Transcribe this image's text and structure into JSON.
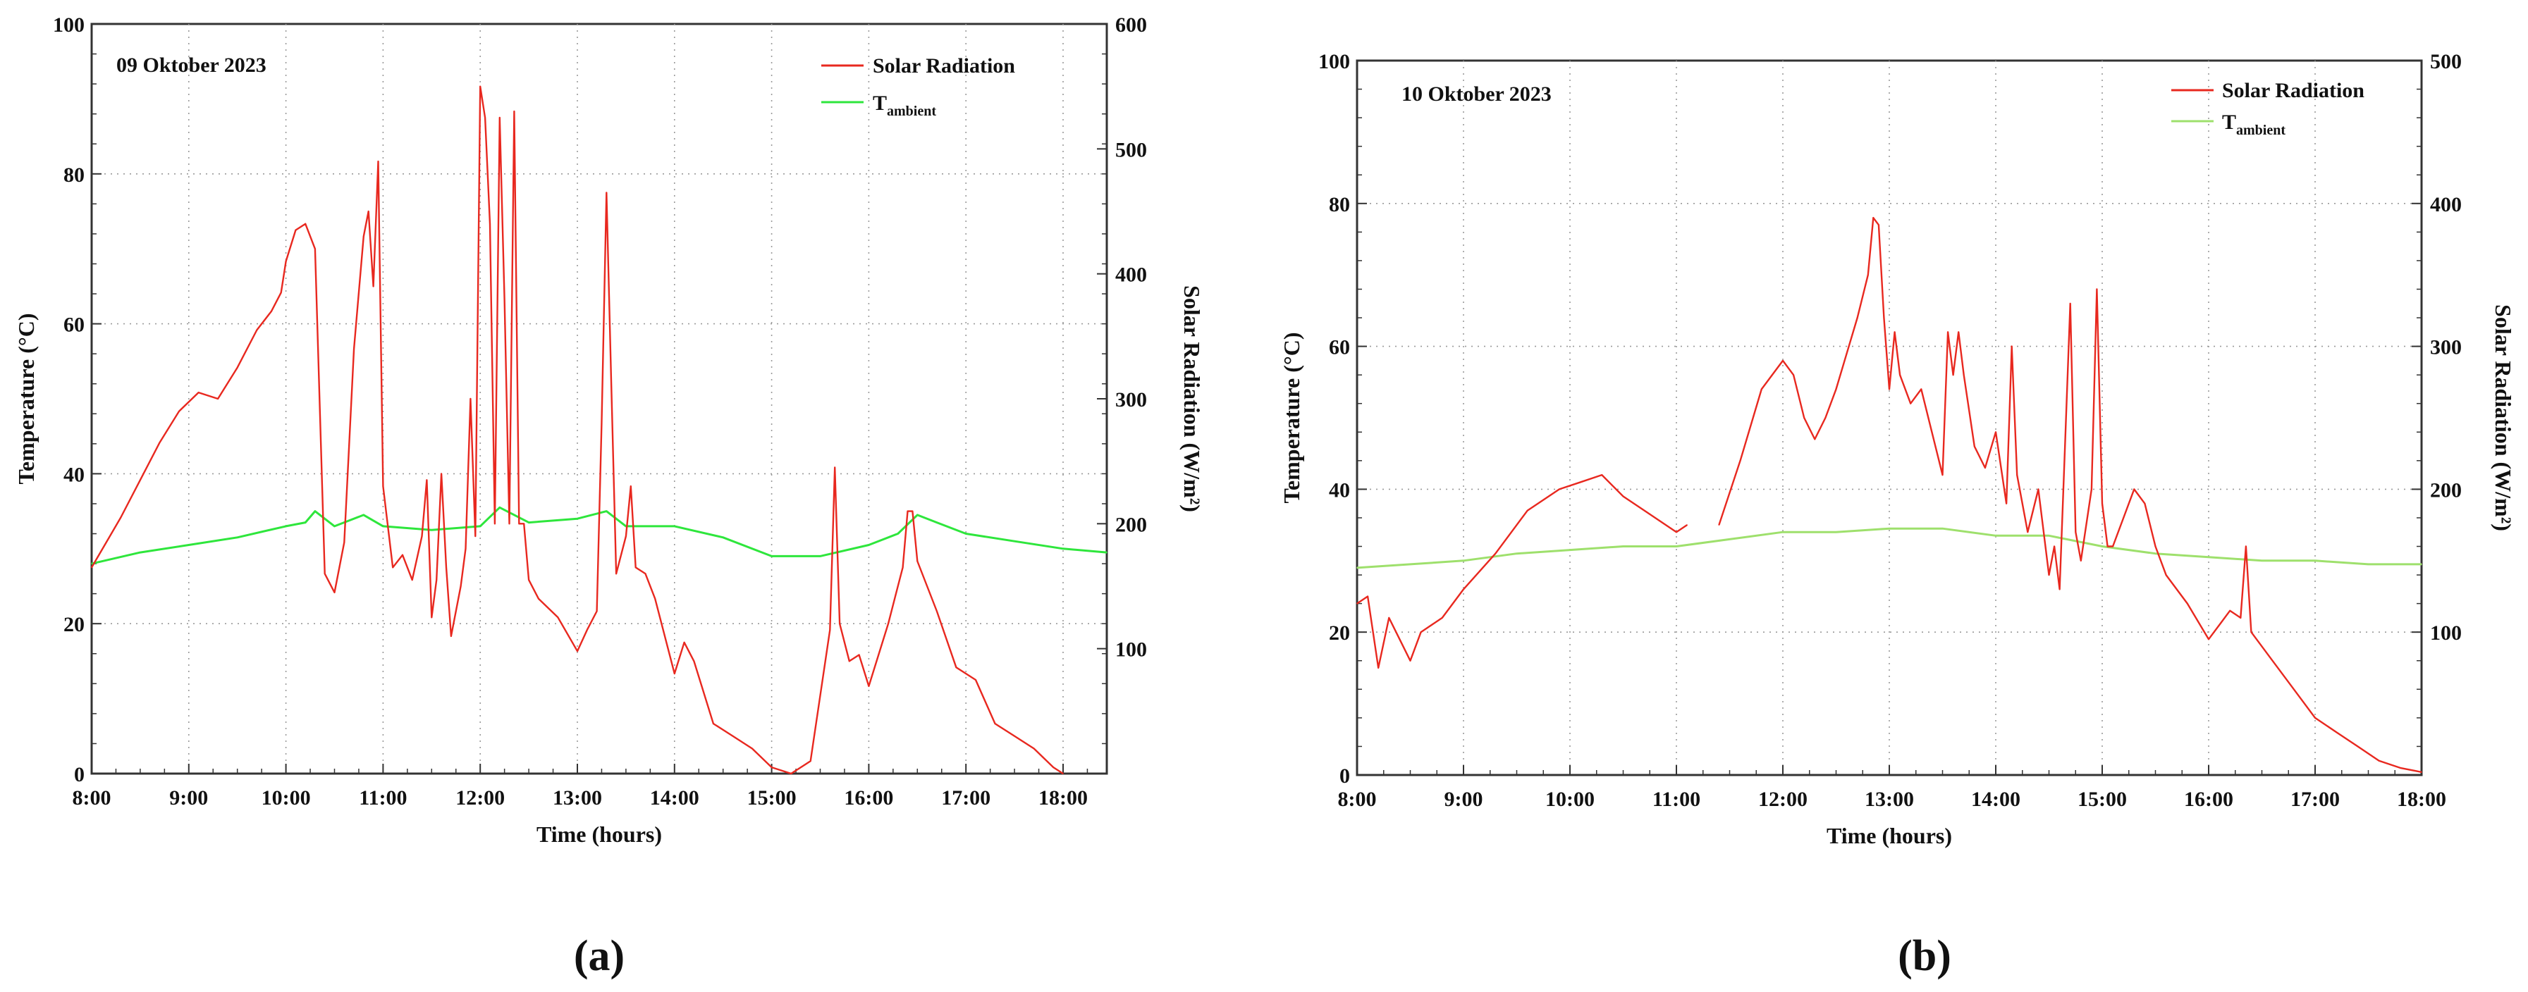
{
  "chart_data": [
    {
      "type": "line",
      "panel_label": "(a)",
      "annotation": "09 Oktober 2023",
      "xlabel": "Time (hours)",
      "ylabel_left": "Temperature (°C)",
      "ylabel_right": "Solar Radiation (W/m²)",
      "x_unit": "hours",
      "xlim": [
        8.0,
        18.45
      ],
      "ylim_left": [
        0,
        100
      ],
      "ylim_right": [
        0,
        600
      ],
      "x_ticks": [
        8,
        9,
        10,
        11,
        12,
        13,
        14,
        15,
        16,
        17,
        18
      ],
      "x_tick_labels": [
        "8:00",
        "9:00",
        "10:00",
        "11:00",
        "12:00",
        "13:00",
        "14:00",
        "15:00",
        "16:00",
        "17:00",
        "18:00"
      ],
      "y_left_ticks": [
        0,
        20,
        40,
        60,
        80,
        100
      ],
      "y_right_ticks": [
        100,
        200,
        300,
        400,
        500,
        600
      ],
      "legend_position": "top-right",
      "series": [
        {
          "name": "Solar Radiation",
          "axis": "right",
          "color": "#e8281f",
          "x": [
            8.0,
            8.15,
            8.3,
            8.5,
            8.7,
            8.9,
            9.1,
            9.3,
            9.5,
            9.7,
            9.85,
            9.95,
            10.0,
            10.1,
            10.2,
            10.3,
            10.4,
            10.5,
            10.6,
            10.7,
            10.8,
            10.85,
            10.9,
            10.95,
            11.0,
            11.1,
            11.2,
            11.3,
            11.4,
            11.45,
            11.5,
            11.55,
            11.6,
            11.65,
            11.7,
            11.8,
            11.85,
            11.9,
            11.95,
            12.0,
            12.05,
            12.1,
            12.15,
            12.2,
            12.25,
            12.3,
            12.35,
            12.4,
            12.45,
            12.5,
            12.6,
            12.8,
            13.0,
            13.1,
            13.2,
            13.25,
            13.3,
            13.35,
            13.4,
            13.5,
            13.55,
            13.6,
            13.7,
            13.8,
            14.0,
            14.1,
            14.2,
            14.4,
            14.6,
            14.8,
            15.0,
            15.2,
            15.4,
            15.6,
            15.65,
            15.7,
            15.8,
            15.9,
            16.0,
            16.2,
            16.3,
            16.35,
            16.4,
            16.45,
            16.5,
            16.7,
            16.9,
            17.1,
            17.3,
            17.5,
            17.7,
            17.9,
            18.0
          ],
          "values": [
            165,
            185,
            205,
            235,
            265,
            290,
            305,
            300,
            325,
            355,
            370,
            385,
            410,
            435,
            440,
            420,
            160,
            145,
            185,
            340,
            430,
            450,
            390,
            490,
            230,
            165,
            175,
            155,
            190,
            235,
            125,
            155,
            240,
            165,
            110,
            150,
            180,
            300,
            190,
            550,
            525,
            440,
            200,
            525,
            380,
            200,
            530,
            200,
            200,
            155,
            140,
            125,
            98,
            115,
            130,
            280,
            465,
            310,
            160,
            190,
            230,
            165,
            160,
            140,
            80,
            105,
            90,
            40,
            30,
            20,
            5,
            0,
            10,
            115,
            245,
            120,
            90,
            95,
            70,
            120,
            150,
            165,
            210,
            210,
            170,
            130,
            85,
            75,
            40,
            30,
            20,
            5,
            0
          ]
        },
        {
          "name": "Tambient",
          "axis": "left",
          "color": "#2ee63c",
          "x": [
            8.0,
            8.5,
            9.0,
            9.5,
            10.0,
            10.2,
            10.3,
            10.5,
            10.8,
            11.0,
            11.5,
            12.0,
            12.2,
            12.5,
            13.0,
            13.3,
            13.5,
            14.0,
            14.5,
            15.0,
            15.5,
            16.0,
            16.3,
            16.5,
            16.7,
            17.0,
            17.5,
            18.0,
            18.45
          ],
          "values": [
            28,
            29.5,
            30.5,
            31.5,
            33,
            33.5,
            35,
            33,
            34.5,
            33,
            32.5,
            33,
            35.5,
            33.5,
            34,
            35,
            33,
            33,
            31.5,
            29,
            29,
            30.5,
            32,
            34.5,
            33.5,
            32,
            31,
            30,
            29.5
          ]
        }
      ]
    },
    {
      "type": "line",
      "panel_label": "(b)",
      "annotation": "10 Oktober 2023",
      "xlabel": "Time (hours)",
      "ylabel_left": "Temperature (°C)",
      "ylabel_right": "Solar Radiation (W/m²)",
      "x_unit": "hours",
      "xlim": [
        8.0,
        18.0
      ],
      "ylim_left": [
        0,
        100
      ],
      "ylim_right": [
        0,
        500
      ],
      "x_ticks": [
        8,
        9,
        10,
        11,
        12,
        13,
        14,
        15,
        16,
        17,
        18
      ],
      "x_tick_labels": [
        "8:00",
        "9:00",
        "10:00",
        "11:00",
        "12:00",
        "13:00",
        "14:00",
        "15:00",
        "16:00",
        "17:00",
        "18:00"
      ],
      "y_left_ticks": [
        0,
        20,
        40,
        60,
        80,
        100
      ],
      "y_right_ticks": [
        100,
        200,
        300,
        400,
        500
      ],
      "legend_position": "top-right",
      "series": [
        {
          "name": "Solar Radiation",
          "axis": "right",
          "color": "#e8281f",
          "x": [
            8.0,
            8.1,
            8.2,
            8.3,
            8.4,
            8.5,
            8.6,
            8.8,
            9.0,
            9.3,
            9.6,
            9.9,
            10.1,
            10.3,
            10.5,
            10.7,
            11.0,
            11.1,
            11.2,
            11.4,
            11.6,
            11.8,
            12.0,
            12.1,
            12.2,
            12.3,
            12.4,
            12.5,
            12.6,
            12.7,
            12.8,
            12.85,
            12.9,
            12.95,
            13.0,
            13.05,
            13.1,
            13.2,
            13.3,
            13.4,
            13.5,
            13.55,
            13.6,
            13.65,
            13.7,
            13.8,
            13.9,
            14.0,
            14.1,
            14.15,
            14.2,
            14.3,
            14.4,
            14.5,
            14.55,
            14.6,
            14.65,
            14.7,
            14.75,
            14.8,
            14.9,
            14.95,
            15.0,
            15.05,
            15.1,
            15.2,
            15.3,
            15.4,
            15.5,
            15.6,
            15.8,
            16.0,
            16.1,
            16.2,
            16.3,
            16.35,
            16.4,
            16.6,
            16.8,
            17.0,
            17.2,
            17.4,
            17.6,
            17.8,
            18.0
          ],
          "values": [
            120,
            125,
            75,
            110,
            95,
            80,
            100,
            110,
            130,
            155,
            185,
            200,
            205,
            210,
            195,
            185,
            170,
            175,
            null,
            175,
            220,
            270,
            290,
            280,
            250,
            235,
            250,
            270,
            295,
            320,
            350,
            390,
            385,
            320,
            270,
            310,
            280,
            260,
            270,
            240,
            210,
            310,
            280,
            310,
            280,
            230,
            215,
            240,
            190,
            300,
            210,
            170,
            200,
            140,
            160,
            130,
            230,
            330,
            170,
            150,
            200,
            340,
            190,
            160,
            160,
            180,
            200,
            190,
            160,
            140,
            120,
            95,
            105,
            115,
            110,
            160,
            100,
            80,
            60,
            40,
            30,
            20,
            10,
            5,
            2
          ]
        },
        {
          "name": "Tambient",
          "axis": "left",
          "color": "#9ee06c",
          "x": [
            8.0,
            8.5,
            9.0,
            9.5,
            10.0,
            10.5,
            11.0,
            11.5,
            12.0,
            12.5,
            13.0,
            13.5,
            14.0,
            14.5,
            15.0,
            15.5,
            16.0,
            16.5,
            17.0,
            17.5,
            18.0
          ],
          "values": [
            29,
            29.5,
            30,
            31,
            31.5,
            32,
            32,
            33,
            34,
            34,
            34.5,
            34.5,
            33.5,
            33.5,
            32,
            31,
            30.5,
            30,
            30,
            29.5,
            29.5
          ]
        }
      ]
    }
  ],
  "panels": [
    {
      "legend": {
        "solar": "Solar Radiation",
        "tamb_main": "T",
        "tamb_sub": "ambient"
      }
    },
    {
      "legend": {
        "solar": "Solar Radiation",
        "tamb_main": "T",
        "tamb_sub": "ambient"
      }
    }
  ]
}
